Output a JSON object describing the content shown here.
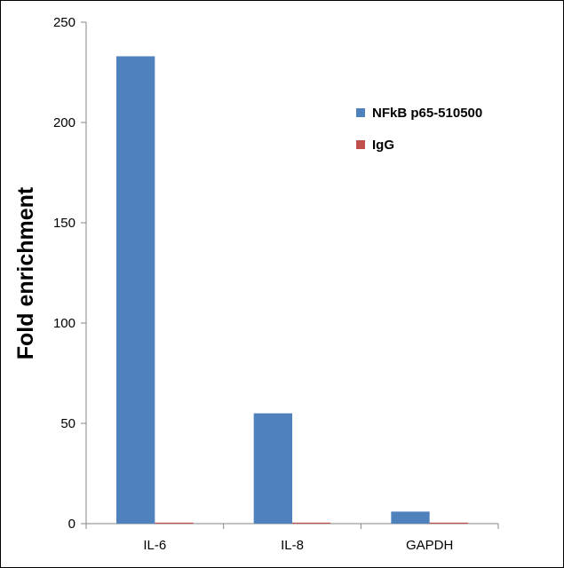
{
  "chart_data": {
    "type": "bar",
    "title": "",
    "xlabel": "",
    "ylabel": "Fold enrichment",
    "categories": [
      "IL-6",
      "IL-8",
      "GAPDH"
    ],
    "series": [
      {
        "name": "NFkB p65-510500",
        "color": "#4f81bd",
        "values": [
          233,
          55,
          6
        ]
      },
      {
        "name": "IgG",
        "color": "#c0504d",
        "values": [
          0.5,
          0.5,
          0.5
        ]
      }
    ],
    "ylim": [
      0,
      250
    ],
    "yticks": [
      0,
      50,
      100,
      150,
      200,
      250
    ],
    "grid": false,
    "legend_position": "right"
  }
}
